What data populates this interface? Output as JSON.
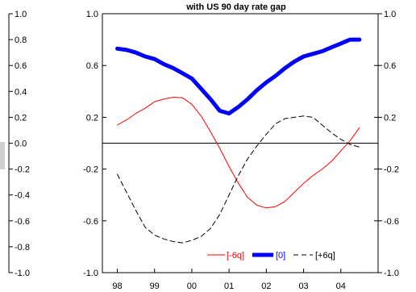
{
  "chart_data": {
    "type": "line",
    "title": "with US 90 day rate gap",
    "left_axis": {
      "ticks": [
        1.0,
        0.8,
        0.6,
        0.4,
        0.2,
        0.0,
        -0.2,
        -0.4,
        -0.6,
        -0.8,
        -1.0
      ],
      "tick_labels": [
        "1.0",
        "0.8",
        "0.6",
        "0.4",
        "0.2",
        "0.0",
        "-0.2",
        "-0.4",
        "-0.6",
        "-0.8",
        "-1.0"
      ]
    },
    "plot_left_axis": {
      "ticks": [
        1.0,
        0.6,
        0.2,
        -0.2,
        -0.6,
        -1.0
      ],
      "tick_labels": [
        "1.0",
        "0.6",
        "0.2",
        "-0.2",
        "-0.6",
        "-1.0"
      ]
    },
    "right_axis": {
      "ticks": [
        1.0,
        0.6,
        0.2,
        -0.2,
        -0.6,
        -1.0
      ],
      "tick_labels": [
        "1.0",
        "0.6",
        "0.2",
        "-0.2",
        "-0.6",
        "-1.0"
      ]
    },
    "x_axis": {
      "tick_labels": [
        "98",
        "99",
        "00",
        "01",
        "02",
        "03",
        "04"
      ],
      "xlim": [
        1997.6,
        2005.0
      ]
    },
    "ylim": [
      -1.0,
      1.0
    ],
    "zero_line": true,
    "legend_position": "bottom-right",
    "series": [
      {
        "name": "[-6q]",
        "color": "#ff0000",
        "style": "solid",
        "x": [
          1998.0,
          1998.25,
          1998.5,
          1998.75,
          1999.0,
          1999.25,
          1999.5,
          1999.75,
          2000.0,
          2000.25,
          2000.5,
          2000.75,
          2001.0,
          2001.25,
          2001.5,
          2001.75,
          2002.0,
          2002.25,
          2002.5,
          2002.75,
          2003.0,
          2003.25,
          2003.5,
          2003.75,
          2004.0,
          2004.25,
          2004.5
        ],
        "values": [
          0.14,
          0.18,
          0.23,
          0.27,
          0.32,
          0.34,
          0.355,
          0.35,
          0.3,
          0.21,
          0.09,
          -0.04,
          -0.18,
          -0.31,
          -0.42,
          -0.48,
          -0.5,
          -0.49,
          -0.45,
          -0.38,
          -0.31,
          -0.25,
          -0.2,
          -0.14,
          -0.06,
          0.02,
          0.12
        ]
      },
      {
        "name": "[0]",
        "color": "#0000ff",
        "style": "thick",
        "x": [
          1998.0,
          1998.25,
          1998.5,
          1998.75,
          1999.0,
          1999.25,
          1999.5,
          1999.75,
          2000.0,
          2000.25,
          2000.5,
          2000.75,
          2001.0,
          2001.25,
          2001.5,
          2001.75,
          2002.0,
          2002.25,
          2002.5,
          2002.75,
          2003.0,
          2003.25,
          2003.5,
          2003.75,
          2004.0,
          2004.25,
          2004.5
        ],
        "values": [
          0.73,
          0.72,
          0.7,
          0.67,
          0.65,
          0.61,
          0.58,
          0.54,
          0.5,
          0.42,
          0.34,
          0.25,
          0.23,
          0.28,
          0.34,
          0.41,
          0.47,
          0.52,
          0.58,
          0.63,
          0.67,
          0.69,
          0.71,
          0.74,
          0.77,
          0.8,
          0.8
        ]
      },
      {
        "name": "[+6q]",
        "color": "#000000",
        "style": "dashed",
        "x": [
          1998.0,
          1998.25,
          1998.5,
          1998.75,
          1999.0,
          1999.25,
          1999.5,
          1999.75,
          2000.0,
          2000.25,
          2000.5,
          2000.75,
          2001.0,
          2001.25,
          2001.5,
          2001.75,
          2002.0,
          2002.25,
          2002.5,
          2002.75,
          2003.0,
          2003.25,
          2003.5,
          2003.75,
          2004.0,
          2004.25,
          2004.5
        ],
        "values": [
          -0.24,
          -0.38,
          -0.52,
          -0.65,
          -0.71,
          -0.74,
          -0.76,
          -0.77,
          -0.75,
          -0.72,
          -0.66,
          -0.55,
          -0.4,
          -0.25,
          -0.12,
          -0.02,
          0.07,
          0.15,
          0.19,
          0.2,
          0.21,
          0.2,
          0.14,
          0.08,
          0.03,
          -0.01,
          -0.03
        ]
      }
    ]
  }
}
